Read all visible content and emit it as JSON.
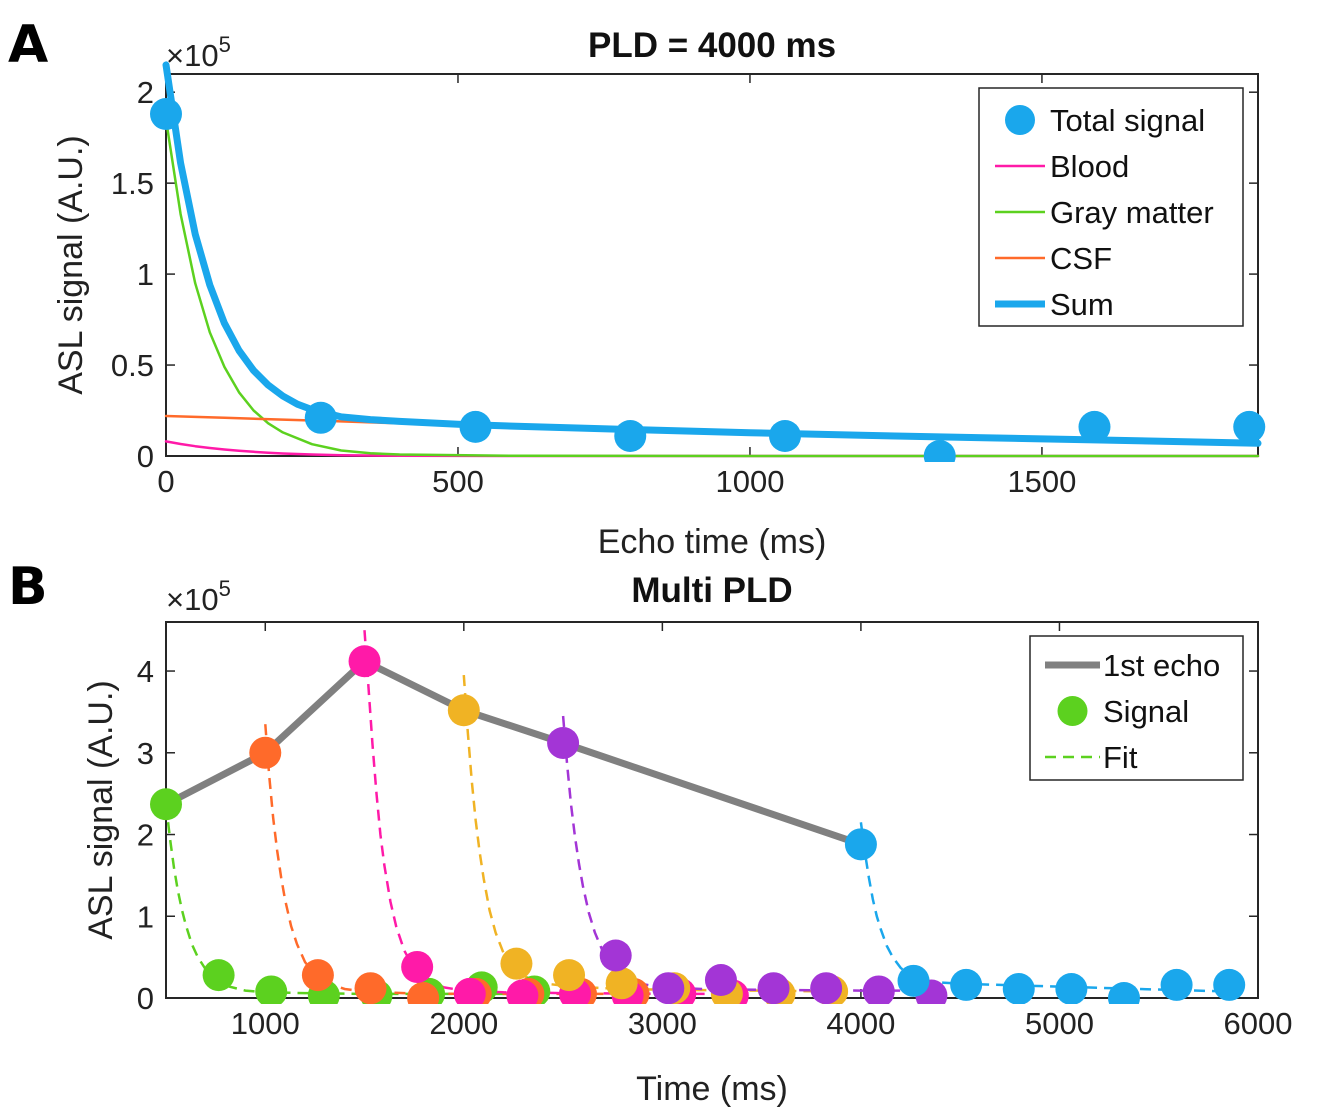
{
  "chart_data": [
    {
      "type": "line",
      "panel_label": "A",
      "title": "PLD = 4000 ms",
      "xlabel": "Echo time (ms)",
      "ylabel": "ASL signal (A.U.)",
      "y_multiplier": "×10",
      "y_multiplier_exp": "5",
      "xlim": [
        0,
        1870
      ],
      "ylim": [
        0,
        2.1
      ],
      "xticks": [
        0,
        500,
        1000,
        1500
      ],
      "yticks": [
        0,
        0.5,
        1,
        1.5,
        2
      ],
      "ytick_labels": [
        "0",
        "0.5",
        "1",
        "1.5",
        "2"
      ],
      "grid": false,
      "legend_position": "top-right",
      "legend": [
        {
          "label": "Total signal",
          "kind": "marker",
          "color": "#1aa7ec"
        },
        {
          "label": "Blood",
          "kind": "line",
          "color": "#ff1aa8"
        },
        {
          "label": "Gray matter",
          "kind": "line",
          "color": "#5cd11f"
        },
        {
          "label": "CSF",
          "kind": "line",
          "color": "#ff6a2a"
        },
        {
          "label": "Sum",
          "kind": "thickline",
          "color": "#1aa7ec"
        }
      ],
      "scatter": {
        "name": "Total signal",
        "color": "#1aa7ec",
        "x": [
          0,
          265,
          530,
          795,
          1060,
          1325,
          1590,
          1855
        ],
        "y": [
          1.88,
          0.21,
          0.16,
          0.11,
          0.11,
          0.0,
          0.16,
          0.16
        ]
      },
      "series": [
        {
          "name": "Blood",
          "color": "#ff1aa8",
          "x": [
            0,
            25,
            50,
            75,
            100,
            125,
            150,
            175,
            200,
            250,
            300,
            400,
            600,
            1000,
            1870
          ],
          "y": [
            0.08,
            0.066,
            0.054,
            0.044,
            0.036,
            0.029,
            0.023,
            0.018,
            0.014,
            0.008,
            0.004,
            0.001,
            0.0,
            0.0,
            0.0
          ]
        },
        {
          "name": "Gray matter",
          "color": "#5cd11f",
          "x": [
            0,
            25,
            50,
            75,
            100,
            125,
            150,
            175,
            200,
            250,
            300,
            350,
            400,
            600,
            1000,
            1870
          ],
          "y": [
            1.85,
            1.33,
            0.95,
            0.68,
            0.49,
            0.35,
            0.25,
            0.18,
            0.13,
            0.065,
            0.03,
            0.015,
            0.008,
            0.001,
            0.0,
            0.0
          ]
        },
        {
          "name": "CSF",
          "color": "#ff6a2a",
          "x": [
            0,
            100,
            200,
            300,
            400
          ],
          "y": [
            0.22,
            0.21,
            0.2,
            0.19,
            0.18
          ]
        },
        {
          "name": "Sum",
          "color": "#1aa7ec",
          "thick": true,
          "x": [
            0,
            25,
            50,
            75,
            100,
            125,
            150,
            175,
            200,
            225,
            250,
            300,
            350,
            400,
            500,
            600,
            800,
            1000,
            1200,
            1400,
            1600,
            1870
          ],
          "y": [
            2.15,
            1.61,
            1.22,
            0.94,
            0.73,
            0.58,
            0.47,
            0.39,
            0.33,
            0.285,
            0.255,
            0.215,
            0.2,
            0.19,
            0.175,
            0.163,
            0.145,
            0.128,
            0.113,
            0.1,
            0.088,
            0.07
          ]
        }
      ]
    },
    {
      "type": "line",
      "panel_label": "B",
      "title": "Multi PLD",
      "xlabel": "Time (ms)",
      "ylabel": "ASL signal (A.U.)",
      "y_multiplier": "×10",
      "y_multiplier_exp": "5",
      "xlim": [
        500,
        6000
      ],
      "ylim": [
        0,
        4.6
      ],
      "xticks": [
        1000,
        2000,
        3000,
        4000,
        5000,
        6000
      ],
      "yticks": [
        0,
        1,
        2,
        3,
        4
      ],
      "ytick_labels": [
        "0",
        "1",
        "2",
        "3",
        "4"
      ],
      "grid": false,
      "legend_position": "top-right",
      "legend": [
        {
          "label": "1st echo",
          "kind": "thickline",
          "color": "#808080"
        },
        {
          "label": "Signal",
          "kind": "marker",
          "color": "#5cd11f"
        },
        {
          "label": "Fit",
          "kind": "dashed",
          "color": "#5cd11f"
        }
      ],
      "first_echo": {
        "name": "1st echo",
        "color": "#808080",
        "x": [
          500,
          1000,
          1500,
          2000,
          2500,
          4000
        ],
        "y": [
          2.37,
          3.0,
          4.12,
          3.52,
          3.12,
          1.88
        ]
      },
      "pld_series": [
        {
          "color": "#5cd11f",
          "points": {
            "x": [
              500,
              765,
              1030,
              1295,
              1560,
              1825,
              2090,
              2355
            ],
            "y": [
              2.37,
              0.28,
              0.08,
              0.03,
              0.03,
              0.05,
              0.13,
              0.08
            ]
          },
          "fit": {
            "x": [
              500,
              520,
              540,
              560,
              580,
              600,
              630,
              660,
              700,
              750,
              800,
              900,
              1000,
              1200,
              1500,
              2000,
              2355
            ],
            "y": [
              2.37,
              1.95,
              1.6,
              1.31,
              1.08,
              0.89,
              0.66,
              0.5,
              0.35,
              0.22,
              0.15,
              0.09,
              0.07,
              0.06,
              0.05,
              0.05,
              0.05
            ]
          }
        },
        {
          "color": "#ff6a2a",
          "points": {
            "x": [
              1000,
              1265,
              1530,
              1795,
              2060,
              2325,
              2590,
              2855
            ],
            "y": [
              3.0,
              0.28,
              0.12,
              0.0,
              0.05,
              0.05,
              0.05,
              0.05
            ]
          },
          "fit": {
            "x": [
              1000,
              1020,
              1040,
              1060,
              1080,
              1100,
              1130,
              1160,
              1200,
              1250,
              1300,
              1400,
              1500,
              1700,
              2000,
              2500,
              2855
            ],
            "y": [
              3.35,
              2.72,
              2.2,
              1.8,
              1.47,
              1.2,
              0.88,
              0.66,
              0.44,
              0.28,
              0.19,
              0.11,
              0.08,
              0.06,
              0.05,
              0.05,
              0.05
            ]
          }
        },
        {
          "color": "#ff1aa8",
          "points": {
            "x": [
              1500,
              1765,
              2030,
              2295,
              2560,
              2825,
              3090,
              3355
            ],
            "y": [
              4.12,
              0.38,
              0.05,
              0.03,
              0.05,
              0.03,
              0.05,
              0.03
            ]
          },
          "fit": {
            "x": [
              1500,
              1520,
              1540,
              1560,
              1580,
              1600,
              1630,
              1660,
              1700,
              1750,
              1800,
              1900,
              2000,
              2200,
              2500,
              3000,
              3355
            ],
            "y": [
              4.5,
              3.8,
              3.1,
              2.5,
              2.0,
              1.62,
              1.18,
              0.87,
              0.58,
              0.36,
              0.24,
              0.13,
              0.09,
              0.07,
              0.06,
              0.05,
              0.05
            ]
          }
        },
        {
          "color": "#f0b324",
          "points": {
            "x": [
              2000,
              2265,
              2530,
              2795,
              3060,
              3325,
              3590,
              3855
            ],
            "y": [
              3.52,
              0.42,
              0.28,
              0.18,
              0.12,
              0.05,
              0.05,
              0.08
            ]
          },
          "fit": {
            "x": [
              2000,
              2020,
              2040,
              2060,
              2080,
              2100,
              2130,
              2160,
              2200,
              2250,
              2300,
              2400,
              2500,
              2700,
              3000,
              3500,
              3855
            ],
            "y": [
              3.95,
              3.25,
              2.65,
              2.17,
              1.78,
              1.46,
              1.07,
              0.8,
              0.55,
              0.37,
              0.27,
              0.18,
              0.15,
              0.12,
              0.1,
              0.09,
              0.08
            ]
          }
        },
        {
          "color": "#a335d6",
          "points": {
            "x": [
              2500,
              2765,
              3030,
              3295,
              3560,
              3825,
              4090,
              4355
            ],
            "y": [
              3.12,
              0.52,
              0.12,
              0.22,
              0.12,
              0.12,
              0.08,
              0.03
            ]
          },
          "fit": {
            "x": [
              2500,
              2520,
              2540,
              2560,
              2580,
              2600,
              2630,
              2660,
              2700,
              2750,
              2800,
              2900,
              3000,
              3200,
              3500,
              4000,
              4355
            ],
            "y": [
              3.45,
              2.86,
              2.37,
              1.97,
              1.64,
              1.37,
              1.04,
              0.8,
              0.57,
              0.38,
              0.27,
              0.17,
              0.13,
              0.11,
              0.1,
              0.09,
              0.09
            ]
          }
        },
        {
          "color": "#1aa7ec",
          "points": {
            "x": [
              4000,
              4265,
              4530,
              4795,
              5060,
              5325,
              5590,
              5855
            ],
            "y": [
              1.88,
              0.21,
              0.16,
              0.11,
              0.11,
              0.0,
              0.16,
              0.16
            ]
          },
          "fit": {
            "x": [
              4000,
              4020,
              4040,
              4060,
              4080,
              4100,
              4130,
              4160,
              4200,
              4250,
              4300,
              4400,
              4500,
              4700,
              5000,
              5400,
              5855
            ],
            "y": [
              2.15,
              1.78,
              1.47,
              1.21,
              1.0,
              0.84,
              0.64,
              0.5,
              0.37,
              0.27,
              0.22,
              0.19,
              0.175,
              0.16,
              0.14,
              0.11,
              0.08
            ]
          }
        }
      ]
    }
  ]
}
